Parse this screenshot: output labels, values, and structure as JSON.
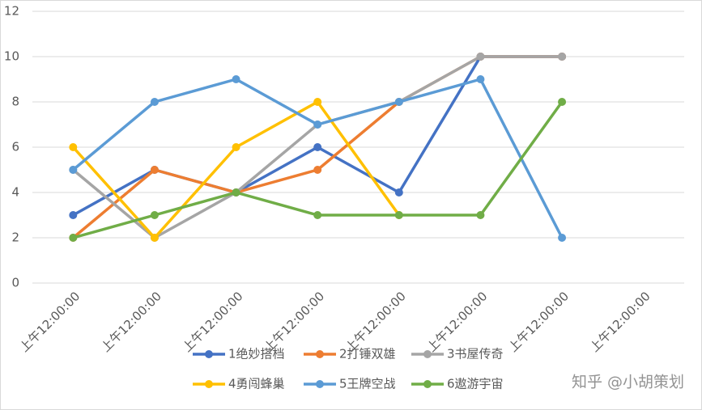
{
  "chart_data": {
    "type": "line",
    "categories": [
      "上午12:00:00",
      "上午12:00:00",
      "上午12:00:00",
      "上午12:00:00",
      "上午12:00:00",
      "上午12:00:00",
      "上午12:00:00",
      "上午12:00:00"
    ],
    "series": [
      {
        "name": "1绝妙搭档",
        "color": "#4472c4",
        "values": [
          3,
          5,
          4,
          6,
          4,
          10,
          10,
          null
        ]
      },
      {
        "name": "2打锤双雄",
        "color": "#ed7d31",
        "values": [
          2,
          5,
          4,
          5,
          8,
          10,
          10,
          null
        ]
      },
      {
        "name": "3书屋传奇",
        "color": "#a5a5a5",
        "values": [
          5,
          2,
          4,
          7,
          8,
          10,
          10,
          null
        ]
      },
      {
        "name": "4勇闯蜂巢",
        "color": "#ffc000",
        "values": [
          6,
          2,
          6,
          8,
          3,
          null,
          null,
          null
        ]
      },
      {
        "name": "5王牌空战",
        "color": "#5b9bd5",
        "values": [
          5,
          8,
          9,
          7,
          8,
          9,
          2,
          null
        ]
      },
      {
        "name": "6遨游宇宙",
        "color": "#70ad47",
        "values": [
          2,
          3,
          4,
          3,
          3,
          3,
          8,
          null
        ]
      }
    ],
    "ylim": [
      0,
      12
    ],
    "yticks": [
      0,
      2,
      4,
      6,
      8,
      10,
      12
    ],
    "grid": true,
    "watermark": "知乎 @小胡策划"
  }
}
